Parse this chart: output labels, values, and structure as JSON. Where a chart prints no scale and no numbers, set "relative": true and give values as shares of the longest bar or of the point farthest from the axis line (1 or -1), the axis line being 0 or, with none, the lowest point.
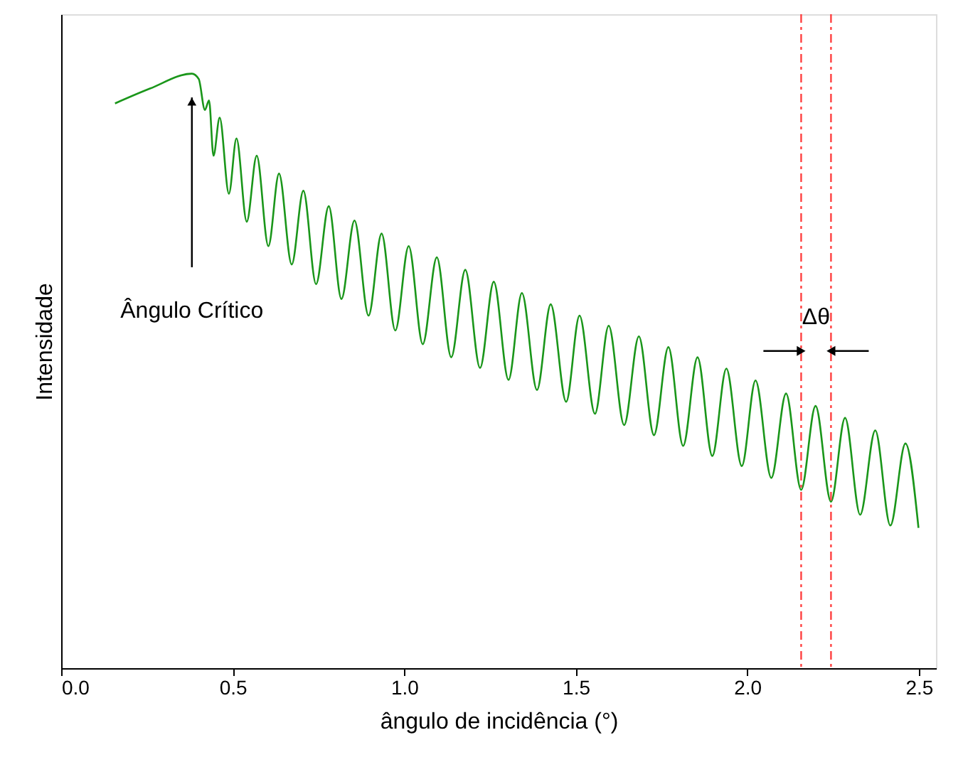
{
  "chart_data": {
    "type": "line",
    "relative": true,
    "xlabel": "ângulo de incidência (°)",
    "ylabel": "Intensidade",
    "xlim": [
      0,
      2.55
    ],
    "xticks": [
      {
        "value": 0,
        "label": "0.0"
      },
      {
        "value": 0.5,
        "label": "0.5"
      },
      {
        "value": 1,
        "label": "1.0"
      },
      {
        "value": 1.5,
        "label": "1.5"
      },
      {
        "value": 2,
        "label": "2.0"
      },
      {
        "value": 2.5,
        "label": "2.5"
      }
    ],
    "tick_labels": "x",
    "grid": false,
    "marker": "none",
    "line_style": "solid",
    "series": [
      {
        "color": "#1a961a",
        "x": [
          0.157,
          0.259,
          0.381,
          0.401,
          0.419,
          0.431,
          0.444,
          0.462,
          0.489,
          0.511,
          0.541,
          0.57,
          0.604,
          0.635,
          0.672,
          0.706,
          0.743,
          0.78,
          0.817,
          0.855,
          0.896,
          0.934,
          0.974,
          1.013,
          1.054,
          1.095,
          1.137,
          1.178,
          1.221,
          1.261,
          1.304,
          1.343,
          1.387,
          1.427,
          1.472,
          1.511,
          1.556,
          1.596,
          1.641,
          1.684,
          1.728,
          1.77,
          1.813,
          1.855,
          1.898,
          1.939,
          1.984,
          2.024,
          2.07,
          2.113,
          2.157,
          2.199,
          2.244,
          2.285,
          2.329,
          2.373,
          2.417,
          2.461,
          2.499
        ],
        "values": [
          0.95,
          0.975,
          1.0,
          0.991,
          0.939,
          0.955,
          0.862,
          0.926,
          0.798,
          0.891,
          0.751,
          0.862,
          0.71,
          0.832,
          0.679,
          0.803,
          0.646,
          0.777,
          0.621,
          0.753,
          0.593,
          0.731,
          0.568,
          0.71,
          0.545,
          0.691,
          0.523,
          0.67,
          0.505,
          0.65,
          0.485,
          0.631,
          0.468,
          0.612,
          0.448,
          0.593,
          0.428,
          0.576,
          0.409,
          0.558,
          0.392,
          0.54,
          0.374,
          0.523,
          0.357,
          0.504,
          0.34,
          0.484,
          0.32,
          0.462,
          0.3,
          0.441,
          0.28,
          0.421,
          0.258,
          0.4,
          0.24,
          0.378,
          0.236
        ]
      }
    ],
    "ref_lines": [
      {
        "axis": "x",
        "value": 2.157,
        "color": "#ff4040",
        "line_style": "dashed"
      },
      {
        "axis": "x",
        "value": 2.244,
        "color": "#ff4040",
        "line_style": "dashed"
      }
    ],
    "annotations": [
      "Ângulo Crítico",
      "Δθ"
    ]
  }
}
